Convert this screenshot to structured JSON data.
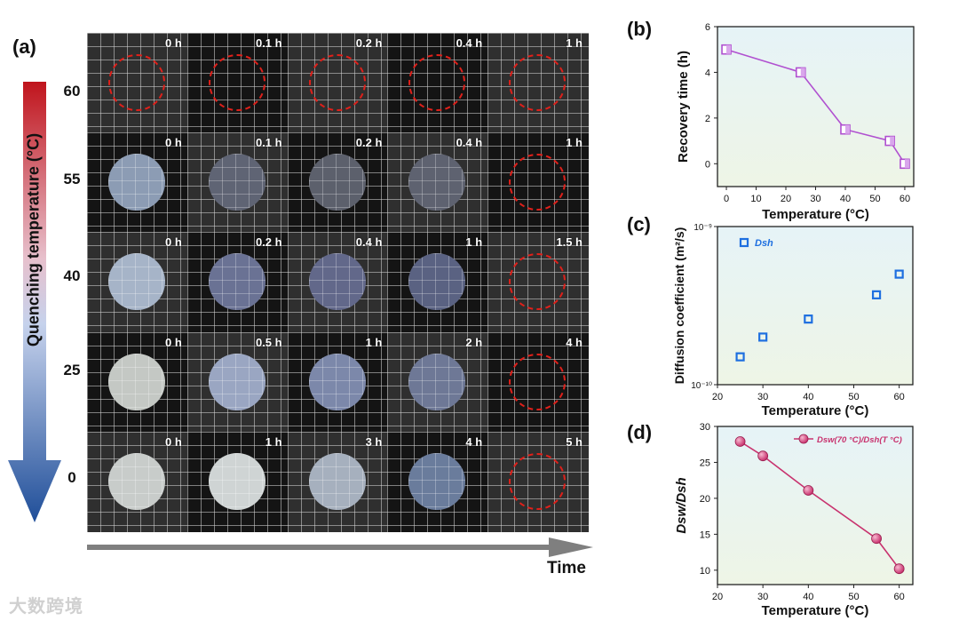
{
  "panel_a": {
    "label": "(a)",
    "y_axis_title": "Quenching temperature (°C)",
    "x_axis_title": "Time",
    "rows": [
      {
        "temperature": "60",
        "times": [
          "0 h",
          "0.1 h",
          "0.2 h",
          "0.4 h",
          "1 h"
        ],
        "recovered_from_column": 0
      },
      {
        "temperature": "55",
        "times": [
          "0 h",
          "0.1 h",
          "0.2 h",
          "0.4 h",
          "1 h"
        ],
        "recovered_from_column": 4
      },
      {
        "temperature": "40",
        "times": [
          "0 h",
          "0.2 h",
          "0.4 h",
          "1 h",
          "1.5 h"
        ],
        "recovered_from_column": 4
      },
      {
        "temperature": "25",
        "times": [
          "0 h",
          "0.5 h",
          "1 h",
          "2 h",
          "4 h"
        ],
        "recovered_from_column": 4
      },
      {
        "temperature": "0",
        "times": [
          "0 h",
          "1 h",
          "3 h",
          "4 h",
          "5 h"
        ],
        "recovered_from_column": 4
      }
    ],
    "colors": {
      "arrow_top": "#c0141c",
      "arrow_bottom": "#1f4e99",
      "dashed_circle": "#e0201a",
      "time_arrow": "#7f7f7f"
    }
  },
  "watermark": "大数跨境",
  "chart_data": [
    {
      "panel": "(b)",
      "type": "line",
      "x": [
        0,
        25,
        40,
        55,
        60
      ],
      "y": [
        5,
        4,
        1.5,
        1,
        0
      ],
      "xlabel": "Temperature (°C)",
      "ylabel": "Recovery time (h)",
      "xlim": [
        -3,
        63
      ],
      "ylim": [
        -1,
        6
      ],
      "xticks": [
        0,
        10,
        20,
        30,
        40,
        50,
        60
      ],
      "yticks": [
        0,
        2,
        4,
        6
      ],
      "marker": "half-filled-square",
      "color": "#b050d0"
    },
    {
      "panel": "(c)",
      "type": "scatter",
      "x": [
        25,
        30,
        40,
        55,
        60
      ],
      "y": [
        1.5e-10,
        2e-10,
        2.6e-10,
        3.7e-10,
        5e-10
      ],
      "xlabel": "Temperature (°C)",
      "ylabel": "Diffusion coefficient (m²/s)",
      "xlim": [
        20,
        63
      ],
      "ylim": [
        1e-10,
        1e-09
      ],
      "yscale": "log",
      "xticks": [
        20,
        30,
        40,
        50,
        60
      ],
      "ytick_labels": [
        "10⁻⁹",
        "10⁻¹⁰"
      ],
      "legend": "Dsh",
      "legend_position": "top-left",
      "marker": "open-square",
      "color": "#1e6fe0"
    },
    {
      "panel": "(d)",
      "type": "line",
      "x": [
        25,
        30,
        40,
        55,
        60
      ],
      "y": [
        27.9,
        25.9,
        21.1,
        14.4,
        10.2
      ],
      "xlabel": "Temperature (°C)",
      "ylabel": "Dsw/Dsh",
      "xlim": [
        20,
        63
      ],
      "ylim": [
        8,
        30
      ],
      "xticks": [
        20,
        30,
        40,
        50,
        60
      ],
      "yticks": [
        10,
        15,
        20,
        25,
        30
      ],
      "legend": "Dsw(70 °C)/Dsh(T °C)",
      "legend_position": "top-right",
      "marker": "sphere",
      "color": "#c8326e"
    }
  ]
}
